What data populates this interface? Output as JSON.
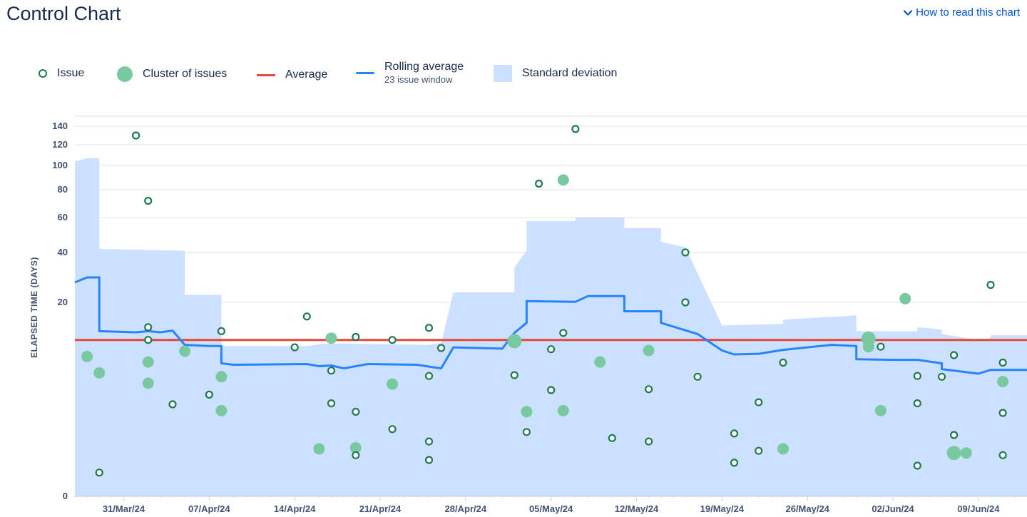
{
  "header": {
    "title": "Control Chart",
    "help_link": "How to read this chart"
  },
  "legend": {
    "issue": "Issue",
    "cluster": "Cluster of issues",
    "average": "Average",
    "rolling": "Rolling average",
    "rolling_window": "23 issue window",
    "stddev": "Standard deviation"
  },
  "colors": {
    "issue_stroke": "#1f7a4d",
    "cluster_fill": "#79c9a0",
    "average_line": "#e5493a",
    "rolling_line": "#2684ff",
    "stddev_fill": "#cce0ff",
    "grid": "#dfe1e6"
  },
  "chart_data": {
    "type": "scatter",
    "ylabel": "ELAPSED TIME (DAYS)",
    "y_scale": "nonlinear (compressed toward top)",
    "y_ticks": [
      0,
      20,
      40,
      60,
      80,
      100,
      120,
      140
    ],
    "x_ticks": [
      "31/Mar/24",
      "07/Apr/24",
      "14/Apr/24",
      "21/Apr/24",
      "28/Apr/24",
      "05/May/24",
      "12/May/24",
      "19/May/24",
      "26/May/24",
      "02/Jun/24",
      "09/Jun/24"
    ],
    "x_range": [
      "2024-03-27",
      "2024-06-13"
    ],
    "average": 13,
    "rolling_average": [
      [
        "2024-03-27",
        28
      ],
      [
        "2024-03-28",
        30
      ],
      [
        "2024-03-29",
        30
      ],
      [
        "2024-03-29",
        14.5
      ],
      [
        "2024-04-01",
        14.3
      ],
      [
        "2024-04-02",
        14.5
      ],
      [
        "2024-04-03",
        14.3
      ],
      [
        "2024-04-04",
        14.6
      ],
      [
        "2024-04-05",
        12.2
      ],
      [
        "2024-04-07",
        12.0
      ],
      [
        "2024-04-08",
        12.0
      ],
      [
        "2024-04-08",
        9.4
      ],
      [
        "2024-04-09",
        9.2
      ],
      [
        "2024-04-15",
        9.3
      ],
      [
        "2024-04-16",
        9.0
      ],
      [
        "2024-04-17",
        9.1
      ],
      [
        "2024-04-18",
        8.7
      ],
      [
        "2024-04-20",
        9.3
      ],
      [
        "2024-04-24",
        9.2
      ],
      [
        "2024-04-26",
        8.7
      ],
      [
        "2024-04-27",
        11.8
      ],
      [
        "2024-05-01",
        11.6
      ],
      [
        "2024-05-02",
        14.2
      ],
      [
        "2024-05-03",
        16
      ],
      [
        "2024-05-03",
        20.5
      ],
      [
        "2024-05-07",
        20.2
      ],
      [
        "2024-05-08",
        22.5
      ],
      [
        "2024-05-11",
        22.5
      ],
      [
        "2024-05-11",
        18.2
      ],
      [
        "2024-05-14",
        18.2
      ],
      [
        "2024-05-14",
        16
      ],
      [
        "2024-05-17",
        14
      ],
      [
        "2024-05-19",
        11.3
      ],
      [
        "2024-05-20",
        10.7
      ],
      [
        "2024-05-22",
        10.8
      ],
      [
        "2024-05-24",
        11.4
      ],
      [
        "2024-05-28",
        12.2
      ],
      [
        "2024-05-30",
        12.0
      ],
      [
        "2024-05-30",
        10.0
      ],
      [
        "2024-06-02",
        9.9
      ],
      [
        "2024-06-04",
        9.9
      ],
      [
        "2024-06-06",
        9.4
      ],
      [
        "2024-06-06",
        8.6
      ],
      [
        "2024-06-09",
        8.0
      ],
      [
        "2024-06-10",
        8.5
      ],
      [
        "2024-06-13",
        8.5
      ]
    ],
    "std_dev_upper": [
      [
        "2024-03-27",
        104
      ],
      [
        "2024-03-28",
        107
      ],
      [
        "2024-03-29",
        107
      ],
      [
        "2024-03-29",
        42
      ],
      [
        "2024-04-05",
        41
      ],
      [
        "2024-04-05",
        23
      ],
      [
        "2024-04-08",
        23
      ],
      [
        "2024-04-08",
        12
      ],
      [
        "2024-04-15",
        12
      ],
      [
        "2024-04-16",
        12.3
      ],
      [
        "2024-04-17",
        12.4
      ],
      [
        "2024-04-18",
        12.4
      ],
      [
        "2024-04-25",
        12.2
      ],
      [
        "2024-04-26",
        12.5
      ],
      [
        "2024-04-27",
        24
      ],
      [
        "2024-05-02",
        24
      ],
      [
        "2024-05-02",
        34
      ],
      [
        "2024-05-03",
        41
      ],
      [
        "2024-05-03",
        58
      ],
      [
        "2024-05-07",
        58
      ],
      [
        "2024-05-07",
        60
      ],
      [
        "2024-05-11",
        60
      ],
      [
        "2024-05-11",
        54
      ],
      [
        "2024-05-14",
        54
      ],
      [
        "2024-05-14",
        46
      ],
      [
        "2024-05-16",
        43
      ],
      [
        "2024-05-19",
        15.5
      ],
      [
        "2024-05-24",
        15.8
      ],
      [
        "2024-05-24",
        16.6
      ],
      [
        "2024-05-30",
        17.4
      ],
      [
        "2024-05-30",
        14.5
      ],
      [
        "2024-06-04",
        14.5
      ],
      [
        "2024-06-04",
        15.2
      ],
      [
        "2024-06-06",
        14.8
      ],
      [
        "2024-06-06",
        14.0
      ],
      [
        "2024-06-09",
        13.0
      ],
      [
        "2024-06-10",
        13.3
      ],
      [
        "2024-06-10",
        13.8
      ],
      [
        "2024-06-13",
        13.8
      ]
    ],
    "issues": [
      [
        "2024-03-29",
        0.3
      ],
      [
        "2024-04-01",
        130
      ],
      [
        "2024-04-02",
        15.2
      ],
      [
        "2024-04-02",
        72
      ],
      [
        "2024-04-02",
        13
      ],
      [
        "2024-04-04",
        4.5
      ],
      [
        "2024-04-07",
        5.5
      ],
      [
        "2024-04-08",
        14.5
      ],
      [
        "2024-04-14",
        11.8
      ],
      [
        "2024-04-15",
        17.2
      ],
      [
        "2024-04-17",
        8.4
      ],
      [
        "2024-04-17",
        4.6
      ],
      [
        "2024-04-19",
        13.5
      ],
      [
        "2024-04-19",
        3.8
      ],
      [
        "2024-04-19",
        0.9
      ],
      [
        "2024-04-22",
        13
      ],
      [
        "2024-04-22",
        2.4
      ],
      [
        "2024-04-25",
        15.1
      ],
      [
        "2024-04-25",
        7.7
      ],
      [
        "2024-04-25",
        1.6
      ],
      [
        "2024-04-25",
        0.7
      ],
      [
        "2024-04-26",
        11.7
      ],
      [
        "2024-05-02",
        7.8
      ],
      [
        "2024-05-03",
        2.2
      ],
      [
        "2024-05-04",
        85
      ],
      [
        "2024-05-05",
        11.5
      ],
      [
        "2024-05-05",
        6.0
      ],
      [
        "2024-05-06",
        14.2
      ],
      [
        "2024-05-07",
        137
      ],
      [
        "2024-05-10",
        1.8
      ],
      [
        "2024-05-13",
        6.1
      ],
      [
        "2024-05-13",
        1.6
      ],
      [
        "2024-05-16",
        40
      ],
      [
        "2024-05-16",
        20
      ],
      [
        "2024-05-17",
        7.6
      ],
      [
        "2024-05-20",
        0.6
      ],
      [
        "2024-05-20",
        2.1
      ],
      [
        "2024-05-22",
        4.7
      ],
      [
        "2024-05-22",
        1.1
      ],
      [
        "2024-05-24",
        9.5
      ],
      [
        "2024-06-01",
        11.9
      ],
      [
        "2024-06-04",
        7.7
      ],
      [
        "2024-06-04",
        4.6
      ],
      [
        "2024-06-04",
        0.5
      ],
      [
        "2024-06-06",
        7.6
      ],
      [
        "2024-06-07",
        10.6
      ],
      [
        "2024-06-07",
        2.0
      ],
      [
        "2024-06-10",
        27
      ],
      [
        "2024-06-11",
        0.9
      ],
      [
        "2024-06-11",
        9.5
      ],
      [
        "2024-06-11",
        3.7
      ]
    ],
    "clusters": [
      [
        "2024-03-28",
        10.4,
        "small"
      ],
      [
        "2024-03-29",
        8.1,
        "small"
      ],
      [
        "2024-04-02",
        9.6,
        "small"
      ],
      [
        "2024-04-02",
        6.8,
        "small"
      ],
      [
        "2024-04-05",
        11.2,
        "small"
      ],
      [
        "2024-04-08",
        7.6,
        "small"
      ],
      [
        "2024-04-08",
        3.9,
        "small"
      ],
      [
        "2024-04-16",
        1.2,
        "small"
      ],
      [
        "2024-04-17",
        13.3,
        "small"
      ],
      [
        "2024-04-19",
        1.25,
        "small"
      ],
      [
        "2024-04-22",
        6.7,
        "small"
      ],
      [
        "2024-05-02",
        12.8,
        "large"
      ],
      [
        "2024-05-03",
        3.8,
        "small"
      ],
      [
        "2024-05-06",
        88,
        "small"
      ],
      [
        "2024-05-06",
        3.9,
        "small"
      ],
      [
        "2024-05-09",
        9.6,
        "small"
      ],
      [
        "2024-05-13",
        11.3,
        "small"
      ],
      [
        "2024-05-24",
        1.2,
        "small"
      ],
      [
        "2024-05-31",
        11.9,
        "small"
      ],
      [
        "2024-05-31",
        13.2,
        "large"
      ],
      [
        "2024-06-01",
        3.9,
        "small"
      ],
      [
        "2024-06-03",
        21.5,
        "small"
      ],
      [
        "2024-06-07",
        1.0,
        "large"
      ],
      [
        "2024-06-08",
        1.0,
        "small"
      ],
      [
        "2024-06-11",
        7.0,
        "small"
      ]
    ]
  }
}
